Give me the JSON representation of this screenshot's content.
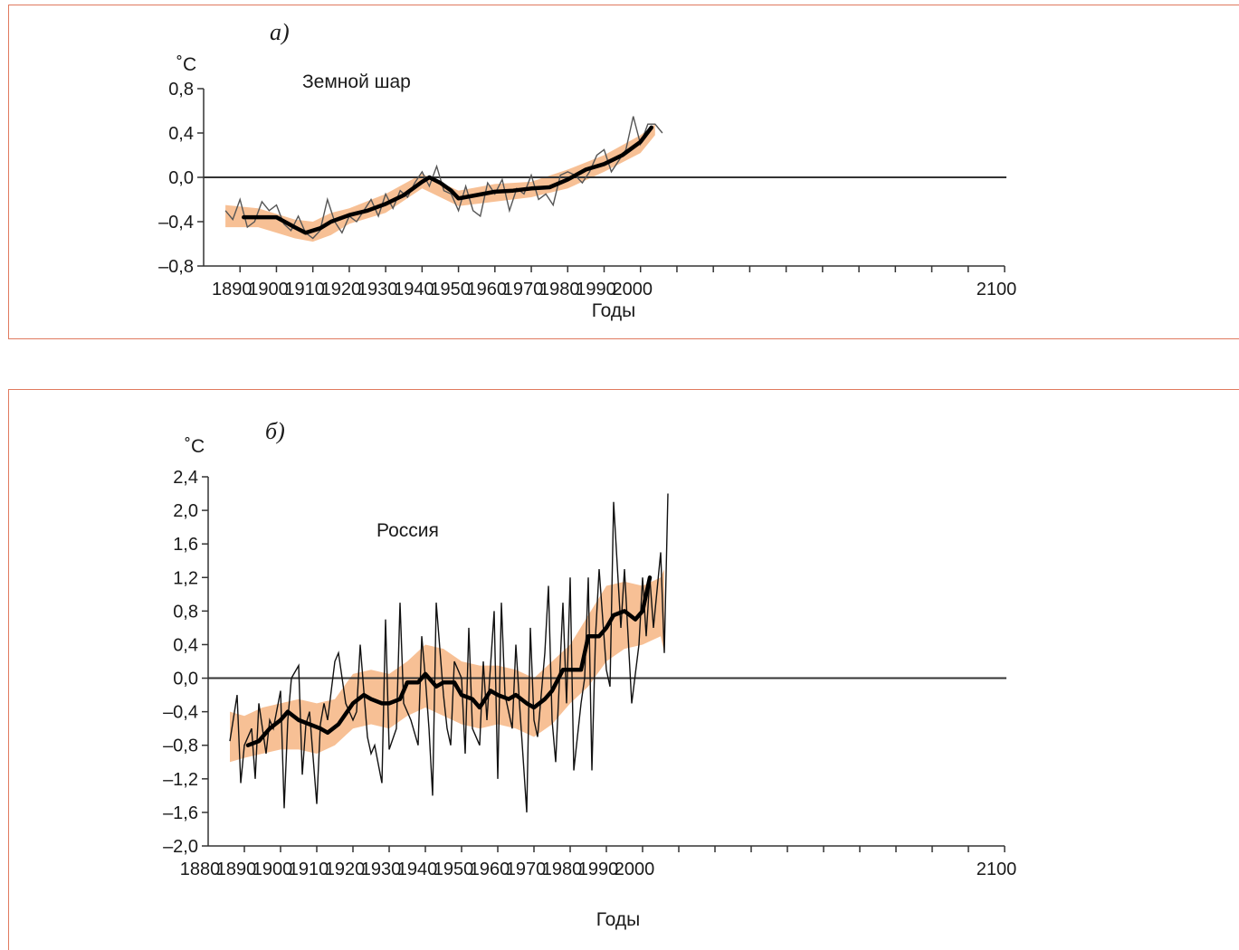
{
  "chart_data": [
    {
      "type": "line",
      "panel_label": "а)",
      "title": "Земной шар",
      "xlabel": "Годы",
      "ylabel": "˚С",
      "xlim": [
        1880,
        2100
      ],
      "ylim": [
        -0.8,
        0.8
      ],
      "x_ticks": [
        1890,
        1900,
        1910,
        1920,
        1930,
        1940,
        1950,
        1960,
        1970,
        1980,
        1990,
        2000,
        2100
      ],
      "y_ticks": [
        "0,8",
        "0,4",
        "0,0",
        "–0,4",
        "–0,8"
      ],
      "y_tick_values": [
        0.8,
        0.4,
        0.0,
        -0.4,
        -0.8
      ],
      "band_color": "#f6b98a",
      "annual_color": "#555555",
      "smooth_color": "#000000",
      "series": [
        {
          "kind": "annual",
          "x": [
            1886,
            1888,
            1890,
            1892,
            1894,
            1896,
            1898,
            1900,
            1902,
            1904,
            1906,
            1908,
            1910,
            1912,
            1914,
            1916,
            1918,
            1920,
            1922,
            1924,
            1926,
            1928,
            1930,
            1932,
            1934,
            1936,
            1938,
            1940,
            1942,
            1944,
            1946,
            1948,
            1950,
            1952,
            1954,
            1956,
            1958,
            1960,
            1962,
            1964,
            1966,
            1968,
            1970,
            1972,
            1974,
            1976,
            1978,
            1980,
            1982,
            1984,
            1986,
            1988,
            1990,
            1992,
            1994,
            1996,
            1998,
            2000,
            2002,
            2004,
            2006
          ],
          "values": [
            -0.3,
            -0.38,
            -0.2,
            -0.45,
            -0.4,
            -0.22,
            -0.3,
            -0.25,
            -0.42,
            -0.48,
            -0.35,
            -0.5,
            -0.55,
            -0.48,
            -0.2,
            -0.4,
            -0.5,
            -0.35,
            -0.4,
            -0.3,
            -0.2,
            -0.35,
            -0.15,
            -0.28,
            -0.12,
            -0.18,
            -0.05,
            0.05,
            -0.08,
            0.1,
            -0.12,
            -0.15,
            -0.3,
            -0.08,
            -0.3,
            -0.35,
            -0.05,
            -0.15,
            -0.02,
            -0.3,
            -0.1,
            -0.15,
            0.02,
            -0.2,
            -0.15,
            -0.25,
            0.02,
            0.05,
            0.02,
            -0.05,
            0.05,
            0.2,
            0.25,
            0.05,
            0.15,
            0.25,
            0.55,
            0.3,
            0.48,
            0.48,
            0.4
          ]
        },
        {
          "kind": "smoothed",
          "x": [
            1891,
            1895,
            1900,
            1905,
            1908,
            1910,
            1912,
            1915,
            1920,
            1925,
            1930,
            1935,
            1940,
            1942,
            1945,
            1948,
            1950,
            1955,
            1960,
            1965,
            1970,
            1975,
            1980,
            1985,
            1990,
            1995,
            2000,
            2003
          ],
          "values": [
            -0.36,
            -0.36,
            -0.36,
            -0.45,
            -0.5,
            -0.48,
            -0.46,
            -0.4,
            -0.34,
            -0.3,
            -0.24,
            -0.16,
            -0.04,
            0.0,
            -0.05,
            -0.12,
            -0.19,
            -0.16,
            -0.13,
            -0.12,
            -0.1,
            -0.09,
            -0.02,
            0.07,
            0.12,
            0.2,
            0.32,
            0.45
          ]
        },
        {
          "kind": "band",
          "x": [
            1886,
            1895,
            1905,
            1910,
            1915,
            1920,
            1930,
            1940,
            1950,
            1960,
            1970,
            1980,
            1990,
            2000,
            2004
          ],
          "lower": [
            -0.45,
            -0.45,
            -0.55,
            -0.58,
            -0.52,
            -0.42,
            -0.32,
            -0.1,
            -0.26,
            -0.22,
            -0.18,
            -0.1,
            0.05,
            0.22,
            0.38
          ],
          "upper": [
            -0.25,
            -0.28,
            -0.38,
            -0.4,
            -0.32,
            -0.28,
            -0.15,
            0.03,
            -0.12,
            -0.06,
            -0.04,
            0.07,
            0.2,
            0.38,
            0.48
          ]
        }
      ]
    },
    {
      "type": "line",
      "panel_label": "б)",
      "title": "Россия",
      "xlabel": "Годы",
      "ylabel": "˚С",
      "xlim": [
        1880,
        2100
      ],
      "ylim": [
        -2.0,
        2.4
      ],
      "x_ticks": [
        1880,
        1890,
        1900,
        1910,
        1920,
        1930,
        1940,
        1950,
        1960,
        1970,
        1980,
        1990,
        2000,
        2100
      ],
      "y_ticks": [
        "2,4",
        "2,0",
        "1,6",
        "1,2",
        "0,8",
        "0,4",
        "0,0",
        "–0,4",
        "–0,8",
        "–1,2",
        "–1,6",
        "–2,0"
      ],
      "y_tick_values": [
        2.4,
        2.0,
        1.6,
        1.2,
        0.8,
        0.4,
        0.0,
        -0.4,
        -0.8,
        -1.2,
        -1.6,
        -2.0
      ],
      "band_color": "#f6b98a",
      "annual_color": "#111111",
      "smooth_color": "#000000",
      "series": [
        {
          "kind": "annual",
          "x": [
            1886,
            1888,
            1889,
            1890,
            1892,
            1893,
            1894,
            1896,
            1897,
            1898,
            1900,
            1901,
            1902,
            1903,
            1905,
            1906,
            1907,
            1908,
            1910,
            1911,
            1912,
            1913,
            1915,
            1916,
            1918,
            1920,
            1921,
            1922,
            1924,
            1925,
            1926,
            1928,
            1929,
            1930,
            1932,
            1933,
            1934,
            1936,
            1938,
            1939,
            1940,
            1941,
            1942,
            1943,
            1945,
            1946,
            1947,
            1948,
            1950,
            1951,
            1952,
            1953,
            1955,
            1956,
            1957,
            1959,
            1960,
            1961,
            1962,
            1964,
            1965,
            1966,
            1968,
            1969,
            1970,
            1971,
            1973,
            1974,
            1975,
            1976,
            1978,
            1979,
            1980,
            1981,
            1983,
            1984,
            1985,
            1986,
            1987,
            1988,
            1990,
            1991,
            1992,
            1994,
            1995,
            1996,
            1997,
            1999,
            2000,
            2001,
            2002,
            2003,
            2005,
            2006,
            2007
          ],
          "values": [
            -0.75,
            -0.2,
            -1.25,
            -0.8,
            -0.6,
            -1.2,
            -0.3,
            -0.9,
            -0.5,
            -0.6,
            -0.15,
            -1.55,
            -0.5,
            0.0,
            0.15,
            -1.15,
            -0.55,
            -0.4,
            -1.5,
            -0.55,
            -0.3,
            -0.5,
            0.2,
            0.3,
            -0.3,
            -0.5,
            -0.4,
            0.4,
            -0.7,
            -0.9,
            -0.8,
            -1.25,
            0.7,
            -0.85,
            -0.6,
            0.9,
            -0.3,
            -0.5,
            -0.8,
            0.5,
            0.0,
            -0.6,
            -1.4,
            0.9,
            -0.2,
            -0.6,
            -0.8,
            0.2,
            0.0,
            -0.9,
            0.6,
            -0.6,
            -0.8,
            0.2,
            -0.5,
            0.8,
            -1.2,
            0.9,
            -0.2,
            -0.6,
            0.4,
            -0.3,
            -1.6,
            0.6,
            -0.5,
            -0.7,
            0.3,
            1.1,
            -0.5,
            -1.0,
            0.9,
            -0.3,
            1.2,
            -1.1,
            -0.3,
            0.0,
            1.2,
            -1.1,
            0.5,
            1.3,
            0.1,
            -0.1,
            2.1,
            0.6,
            1.3,
            0.5,
            -0.3,
            0.4,
            1.2,
            0.5,
            1.2,
            0.6,
            1.5,
            0.3,
            2.2
          ]
        },
        {
          "kind": "smoothed",
          "x": [
            1891,
            1894,
            1897,
            1900,
            1902,
            1905,
            1908,
            1911,
            1913,
            1916,
            1920,
            1923,
            1925,
            1928,
            1930,
            1933,
            1935,
            1938,
            1940,
            1943,
            1945,
            1948,
            1950,
            1953,
            1955,
            1958,
            1960,
            1963,
            1965,
            1968,
            1970,
            1973,
            1975,
            1978,
            1980,
            1983,
            1985,
            1988,
            1990,
            1992,
            1995,
            1998,
            2000,
            2002
          ],
          "values": [
            -0.8,
            -0.75,
            -0.6,
            -0.5,
            -0.4,
            -0.5,
            -0.55,
            -0.6,
            -0.65,
            -0.55,
            -0.3,
            -0.2,
            -0.25,
            -0.3,
            -0.3,
            -0.25,
            -0.05,
            -0.05,
            0.05,
            -0.1,
            -0.05,
            -0.05,
            -0.2,
            -0.25,
            -0.35,
            -0.15,
            -0.2,
            -0.25,
            -0.2,
            -0.3,
            -0.35,
            -0.25,
            -0.15,
            0.1,
            0.1,
            0.1,
            0.5,
            0.5,
            0.6,
            0.75,
            0.8,
            0.7,
            0.8,
            1.2
          ]
        },
        {
          "kind": "band",
          "x": [
            1886,
            1890,
            1895,
            1900,
            1905,
            1910,
            1915,
            1920,
            1925,
            1930,
            1935,
            1940,
            1945,
            1950,
            1955,
            1960,
            1965,
            1970,
            1975,
            1980,
            1985,
            1990,
            1995,
            2000,
            2005,
            2006
          ],
          "lower": [
            -1.0,
            -0.95,
            -0.9,
            -0.85,
            -0.85,
            -0.9,
            -0.8,
            -0.6,
            -0.55,
            -0.6,
            -0.45,
            -0.35,
            -0.45,
            -0.55,
            -0.6,
            -0.55,
            -0.6,
            -0.7,
            -0.55,
            -0.3,
            -0.1,
            0.2,
            0.35,
            0.4,
            0.5,
            0.3
          ],
          "upper": [
            -0.4,
            -0.45,
            -0.35,
            -0.3,
            -0.25,
            -0.3,
            -0.25,
            0.05,
            0.1,
            0.05,
            0.2,
            0.4,
            0.35,
            0.2,
            0.15,
            0.15,
            0.1,
            0.0,
            0.2,
            0.4,
            0.75,
            1.1,
            1.15,
            1.1,
            1.2,
            1.3
          ]
        }
      ]
    }
  ]
}
